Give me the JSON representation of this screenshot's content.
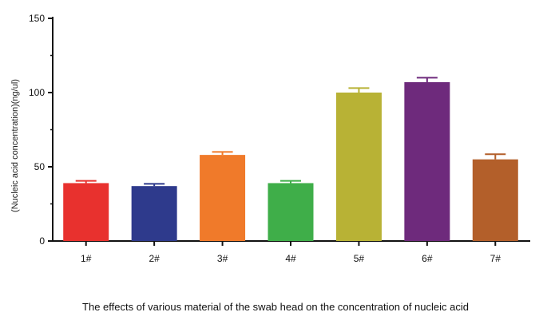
{
  "chart_data": {
    "type": "bar",
    "categories": [
      "1#",
      "2#",
      "3#",
      "4#",
      "5#",
      "6#",
      "7#"
    ],
    "values": [
      39,
      37,
      58,
      39,
      100,
      107,
      55
    ],
    "errors": [
      1.5,
      1.5,
      2,
      1.5,
      3,
      3,
      3.5
    ],
    "colors": [
      "#e8312e",
      "#2e3a8c",
      "#f07a2a",
      "#3fae49",
      "#b8b235",
      "#6e2a7c",
      "#b35f2a"
    ],
    "ylabel": "(Nucleic acid concentration)(ng/ul)",
    "ylim": [
      0,
      150
    ],
    "yticks": [
      0,
      50,
      100,
      150
    ],
    "caption": "The effects of various material of the swab head on the concentration of nucleic acid",
    "grid": false,
    "legend": "none"
  }
}
